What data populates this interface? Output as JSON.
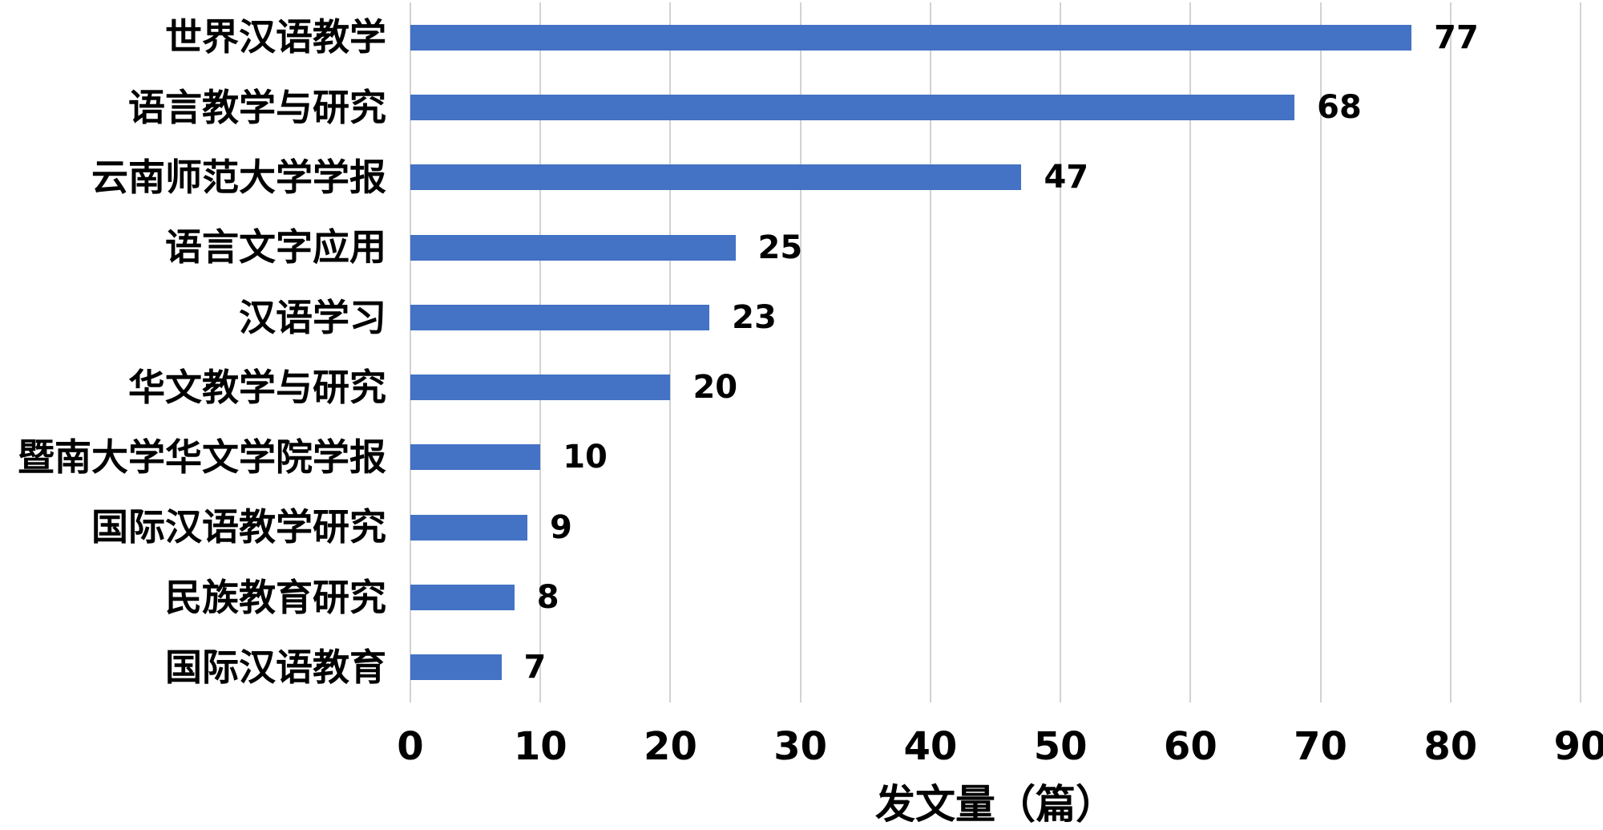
{
  "chart_data": {
    "type": "bar",
    "orientation": "horizontal",
    "categories": [
      "世界汉语教学",
      "语言教学与研究",
      "云南师范大学学报",
      "语言文字应用",
      "汉语学习",
      "华文教学与研究",
      "暨南大学华文学院学报",
      "国际汉语教学研究",
      "民族教育研究",
      "国际汉语教育"
    ],
    "values": [
      77,
      68,
      47,
      25,
      23,
      20,
      10,
      9,
      8,
      7
    ],
    "data_labels_shown": true,
    "xlabel": "发文量（篇）",
    "ylabel": "",
    "xlim": [
      0,
      90
    ],
    "xticks": [
      0,
      10,
      20,
      30,
      40,
      50,
      60,
      70,
      80,
      90
    ],
    "grid": "vertical-gridlines-on",
    "legend": "none",
    "bar_color": "#4472C4",
    "gridline_color": "#D2D2D2",
    "text_color": "#000000",
    "background_color": "#FFFFFF"
  }
}
